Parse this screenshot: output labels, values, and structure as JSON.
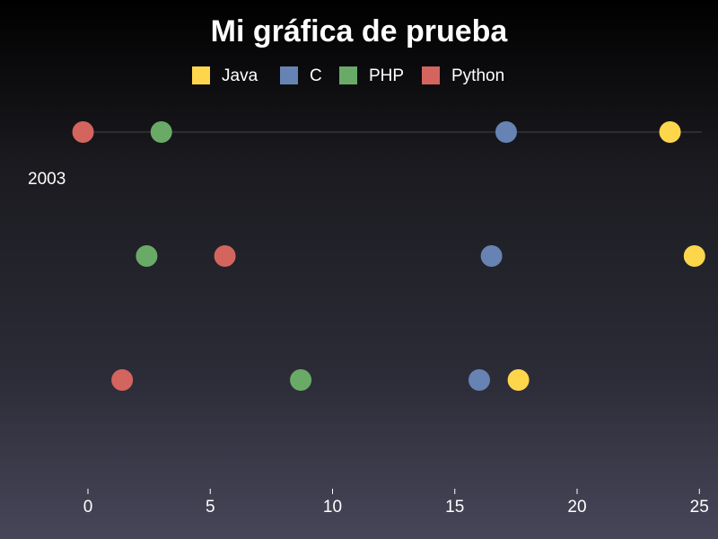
{
  "chart_data": {
    "type": "scatter",
    "title": "Mi gráfica de prueba",
    "xlabel": "",
    "ylabel": "",
    "xlim": [
      -2,
      25
    ],
    "xticks": [
      0,
      5,
      10,
      15,
      20,
      25
    ],
    "categories": [
      "",
      "2003",
      "",
      ""
    ],
    "legend_position": "top",
    "grid": false,
    "series": [
      {
        "name": "Java",
        "color": "#fdd64b",
        "values": [
          23.8,
          24.8,
          17.6
        ]
      },
      {
        "name": "C",
        "color": "#6783b3",
        "values": [
          17.1,
          16.5,
          16.0
        ]
      },
      {
        "name": "PHP",
        "color": "#6aaa67",
        "values": [
          3.0,
          2.4,
          8.7
        ]
      },
      {
        "name": "Python",
        "color": "#d4645e",
        "values": [
          -0.2,
          5.6,
          1.4
        ]
      }
    ]
  }
}
